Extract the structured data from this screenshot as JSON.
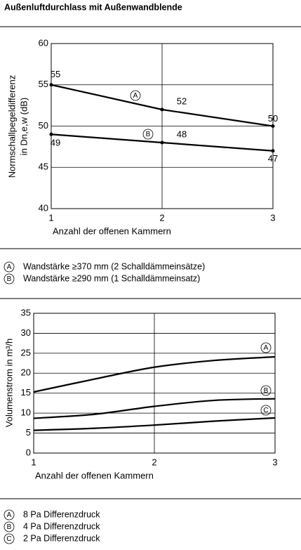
{
  "title": "Außenluftdurchlass mit Außenwandblende",
  "chart_data": [
    {
      "type": "line",
      "ylabel": [
        "Normschallpegeldifferenz",
        "in Dn,e,w (dB)"
      ],
      "xlabel": "Anzahl der offenen Kammern",
      "x": [
        1,
        2,
        3
      ],
      "xlim": [
        1,
        3
      ],
      "xticks": [
        1,
        2,
        3
      ],
      "ylim": [
        40,
        60
      ],
      "yticks": [
        40,
        45,
        50,
        55,
        60
      ],
      "grid": true,
      "series": [
        {
          "name": "A",
          "label": "Wandstärke ≥370 mm (2 Schalldämmeinsätze)",
          "color": "#000000",
          "values": [
            55,
            52,
            50
          ]
        },
        {
          "name": "B",
          "label": "Wandstärke ≥290 mm (1 Schalldämmeinsatz)",
          "color": "#000000",
          "values": [
            49,
            48,
            47
          ]
        }
      ]
    },
    {
      "type": "curve",
      "ylabel": [
        "Volumenstrom in m³/h"
      ],
      "xlabel": "Anzahl der offenen Kammern",
      "x": [
        1,
        1.5,
        2,
        2.5,
        3
      ],
      "xlim": [
        1,
        3
      ],
      "xticks": [
        1,
        2,
        3
      ],
      "ylim": [
        0,
        35
      ],
      "yticks": [
        0,
        5,
        10,
        15,
        20,
        25,
        30,
        35
      ],
      "grid": true,
      "series": [
        {
          "name": "A",
          "label": "8 Pa Differenzdruck",
          "color": "#000000",
          "values": [
            15.3,
            18.5,
            21.5,
            23.2,
            24.1
          ]
        },
        {
          "name": "B",
          "label": "4 Pa Differenzdruck",
          "color": "#000000",
          "values": [
            8.7,
            9.7,
            11.7,
            13.2,
            13.6
          ]
        },
        {
          "name": "C",
          "label": "2 Pa Differenzdruck",
          "color": "#000000",
          "values": [
            5.7,
            6.2,
            7.0,
            8.0,
            8.8
          ]
        }
      ]
    }
  ]
}
